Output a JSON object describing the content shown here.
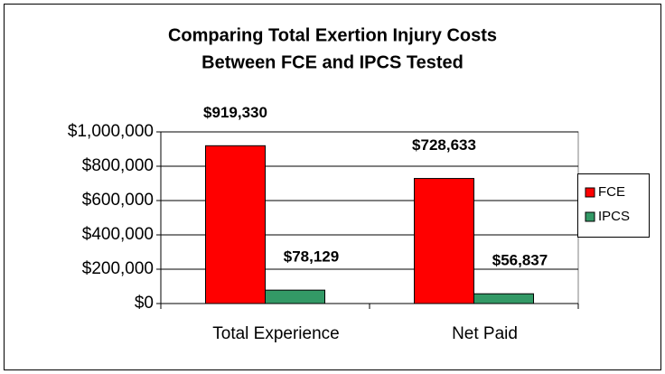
{
  "chart_data": {
    "type": "bar",
    "title": [
      "Comparing Total Exertion Injury Costs",
      "Between FCE and IPCS Tested"
    ],
    "categories": [
      "Total Experience",
      "Net Paid"
    ],
    "series": [
      {
        "name": "FCE",
        "color": "#ff0000",
        "values": [
          919330,
          728633
        ],
        "value_labels": [
          "$919,330",
          "$728,633"
        ]
      },
      {
        "name": "IPCS",
        "color": "#339966",
        "values": [
          78129,
          56837
        ],
        "value_labels": [
          "$78,129",
          "$56,837"
        ]
      }
    ],
    "ylim": [
      0,
      1000000
    ],
    "yticks": [
      {
        "value": 0,
        "label": "$0"
      },
      {
        "value": 200000,
        "label": "$200,000"
      },
      {
        "value": 400000,
        "label": "$400,000"
      },
      {
        "value": 600000,
        "label": "$600,000"
      },
      {
        "value": 800000,
        "label": "$800,000"
      },
      {
        "value": 1000000,
        "label": "$1,000,000"
      }
    ],
    "grid": true,
    "legend": "right"
  }
}
